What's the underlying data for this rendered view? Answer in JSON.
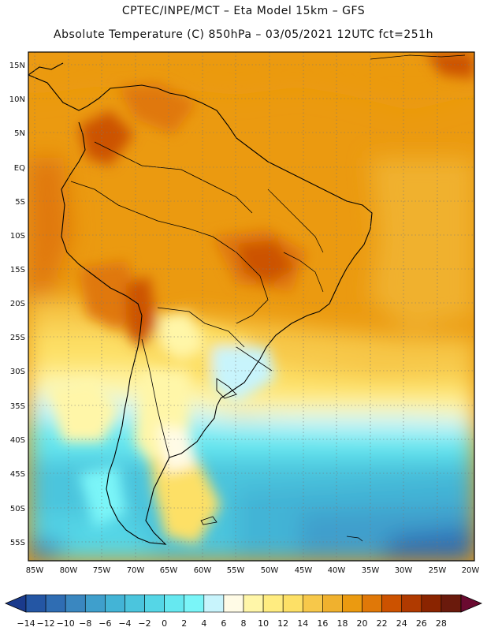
{
  "title_line1": "CPTEC/INPE/MCT  –   Eta Model 15km  –  GFS",
  "title_line2": "Absolute Temperature (C) 850hPa – 03/05/2021 12UTC fct=251h",
  "lat_ticks": [
    "15N",
    "10N",
    "5N",
    "EQ",
    "5S",
    "10S",
    "15S",
    "20S",
    "25S",
    "30S",
    "35S",
    "40S",
    "45S",
    "50S",
    "55S"
  ],
  "lon_ticks": [
    "85W",
    "80W",
    "75W",
    "70W",
    "65W",
    "60W",
    "55W",
    "50W",
    "45W",
    "40W",
    "35W",
    "30W",
    "25W",
    "20W"
  ],
  "colorbar": {
    "labels": [
      "-14",
      "-12",
      "-10",
      "-8",
      "-6",
      "-4",
      "-2",
      "0",
      "2",
      "4",
      "6",
      "8",
      "10",
      "12",
      "14",
      "16",
      "18",
      "20",
      "22",
      "24",
      "26",
      "28"
    ],
    "colors": [
      "#1a3a8c",
      "#2456a4",
      "#2f6db3",
      "#3a87c0",
      "#3f9fcc",
      "#43b4d6",
      "#4bc5dd",
      "#55d6e6",
      "#66e8f0",
      "#7af5f8",
      "#c8f4fc",
      "#fffbe6",
      "#fff6a8",
      "#ffec80",
      "#fde066",
      "#f7c84a",
      "#f0b12e",
      "#eb9a10",
      "#e07808",
      "#cc5200",
      "#b03a00",
      "#8a2400",
      "#6a1a0c",
      "#6a0a30"
    ]
  }
}
